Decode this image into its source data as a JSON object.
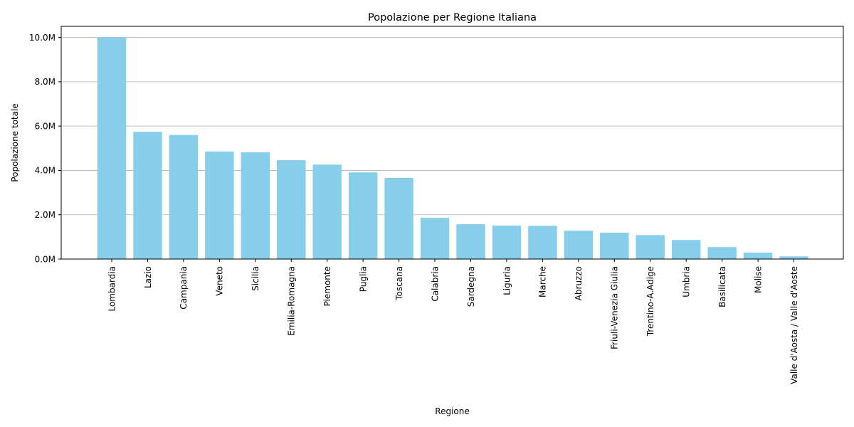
{
  "chart_data": {
    "type": "bar",
    "title": "Popolazione per Regione Italiana",
    "xlabel": "Regione",
    "ylabel": "Popolazione totale",
    "ylim": [
      0,
      10500000
    ],
    "yticks": [
      0,
      2000000,
      4000000,
      6000000,
      8000000,
      10000000
    ],
    "ytick_labels": [
      "0.0M",
      "2.0M",
      "4.0M",
      "6.0M",
      "8.0M",
      "10.0M"
    ],
    "grid": "y",
    "bar_color": "#87CEEB",
    "categories": [
      "Lombardia",
      "Lazio",
      "Campania",
      "Veneto",
      "Sicilia",
      "Emilia-Romagna",
      "Piemonte",
      "Puglia",
      "Toscana",
      "Calabria",
      "Sardegna",
      "Liguria",
      "Marche",
      "Abruzzo",
      "Friuli-Venezia Giulia",
      "Trentino-A.Adige",
      "Umbria",
      "Basilicata",
      "Molise",
      "Valle d'Aosta / Valle d'Aoste"
    ],
    "values": [
      10000000,
      5740000,
      5600000,
      4850000,
      4820000,
      4460000,
      4260000,
      3910000,
      3660000,
      1860000,
      1570000,
      1510000,
      1500000,
      1280000,
      1190000,
      1080000,
      860000,
      540000,
      290000,
      120000
    ]
  }
}
